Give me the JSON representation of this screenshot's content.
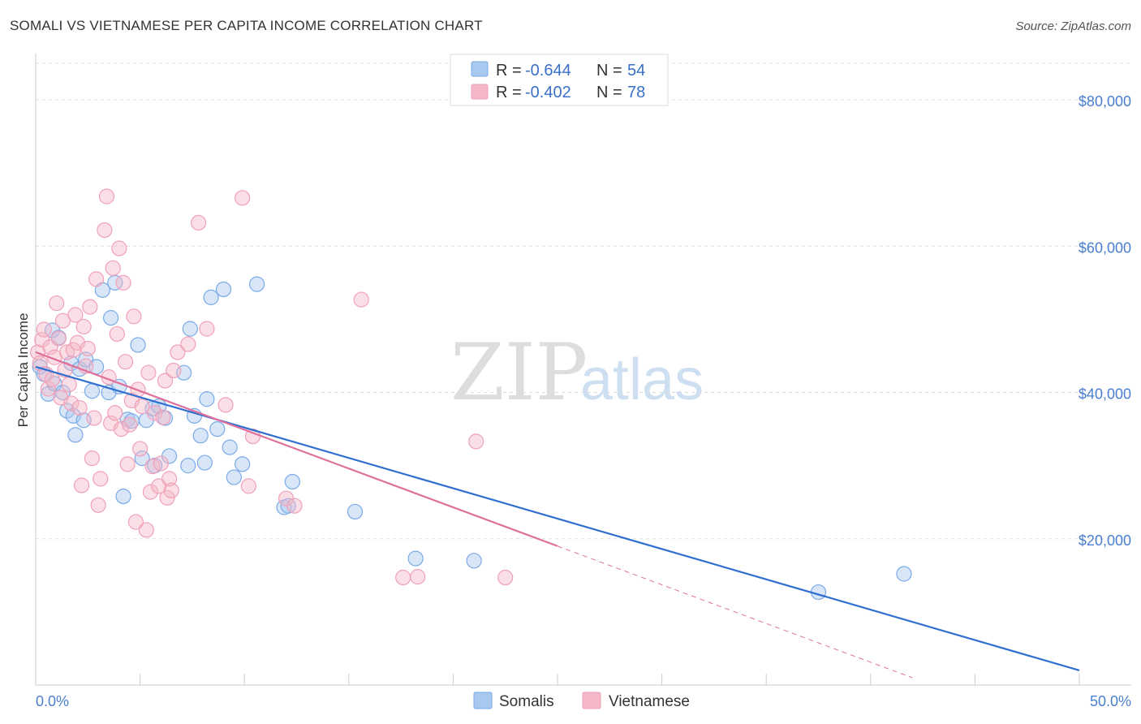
{
  "title": "SOMALI VS VIETNAMESE PER CAPITA INCOME CORRELATION CHART",
  "source": "Source: ZipAtlas.com",
  "watermark": {
    "zip": "ZIP",
    "atlas": "atlas"
  },
  "legend_top": [
    {
      "r_label": "R =",
      "r_value": "-0.644",
      "n_label": "N =",
      "n_value": "54",
      "color": "#a8c8f0"
    },
    {
      "r_label": "R =",
      "r_value": "-0.402",
      "n_label": "N =",
      "n_value": "78",
      "color": "#f5b8c8"
    }
  ],
  "chart_data": {
    "type": "scatter",
    "title": "SOMALI VS VIETNAMESE PER CAPITA INCOME CORRELATION CHART",
    "xlabel": "",
    "ylabel": "Per Capita Income",
    "xlim": [
      0,
      50
    ],
    "ylim": [
      0,
      85000
    ],
    "x_tick_labels": [
      "0.0%",
      "50.0%"
    ],
    "y_ticks": [
      20000,
      40000,
      60000,
      80000
    ],
    "y_tick_labels": [
      "$20,000",
      "$40,000",
      "$60,000",
      "$80,000"
    ],
    "grid": true,
    "legend_position": "top-center",
    "series": [
      {
        "name": "Somalis",
        "color": "#7aaae8",
        "trend": {
          "x": [
            0,
            50
          ],
          "y": [
            43500,
            2000
          ],
          "color": "#2f6fd0"
        },
        "points": [
          [
            0.2,
            43500
          ],
          [
            0.4,
            42500
          ],
          [
            0.6,
            39800
          ],
          [
            0.8,
            48500
          ],
          [
            0.9,
            41200
          ],
          [
            1.1,
            47500
          ],
          [
            1.3,
            40000
          ],
          [
            1.5,
            37500
          ],
          [
            1.7,
            44000
          ],
          [
            1.8,
            36800
          ],
          [
            1.9,
            34200
          ],
          [
            2.1,
            43200
          ],
          [
            2.3,
            36200
          ],
          [
            2.4,
            44500
          ],
          [
            2.7,
            40200
          ],
          [
            2.9,
            43500
          ],
          [
            3.2,
            54000
          ],
          [
            3.5,
            40000
          ],
          [
            3.6,
            50200
          ],
          [
            3.8,
            55000
          ],
          [
            4.0,
            40800
          ],
          [
            4.2,
            25800
          ],
          [
            4.4,
            36300
          ],
          [
            4.6,
            36100
          ],
          [
            4.9,
            46500
          ],
          [
            5.1,
            31000
          ],
          [
            5.3,
            36200
          ],
          [
            5.6,
            37800
          ],
          [
            5.7,
            30000
          ],
          [
            5.9,
            38100
          ],
          [
            6.2,
            36500
          ],
          [
            6.4,
            31300
          ],
          [
            7.1,
            42700
          ],
          [
            7.3,
            30000
          ],
          [
            7.4,
            48700
          ],
          [
            7.6,
            36800
          ],
          [
            7.9,
            34100
          ],
          [
            8.1,
            30400
          ],
          [
            8.2,
            39100
          ],
          [
            8.4,
            53000
          ],
          [
            8.7,
            35000
          ],
          [
            9.0,
            54100
          ],
          [
            9.3,
            32500
          ],
          [
            9.5,
            28400
          ],
          [
            9.9,
            30200
          ],
          [
            10.6,
            54800
          ],
          [
            11.9,
            24300
          ],
          [
            12.1,
            24500
          ],
          [
            12.3,
            27800
          ],
          [
            15.3,
            23700
          ],
          [
            18.2,
            17300
          ],
          [
            21.0,
            17000
          ],
          [
            37.5,
            12700
          ],
          [
            41.6,
            15200
          ]
        ]
      },
      {
        "name": "Vietnamese",
        "color": "#f0a0b8",
        "trend": {
          "x": [
            0,
            25
          ],
          "y": [
            45500,
            19000
          ],
          "color": "#e0709a"
        },
        "trend_extension": {
          "x": [
            25,
            42
          ],
          "y": [
            19000,
            1000
          ]
        },
        "points": [
          [
            0.1,
            45500
          ],
          [
            0.2,
            44000
          ],
          [
            0.3,
            47200
          ],
          [
            0.4,
            48600
          ],
          [
            0.5,
            42500
          ],
          [
            0.6,
            40500
          ],
          [
            0.7,
            46200
          ],
          [
            0.8,
            41800
          ],
          [
            0.9,
            44800
          ],
          [
            1.0,
            52200
          ],
          [
            1.1,
            47400
          ],
          [
            1.2,
            39300
          ],
          [
            1.3,
            49800
          ],
          [
            1.4,
            43100
          ],
          [
            1.5,
            45500
          ],
          [
            1.6,
            41100
          ],
          [
            1.7,
            38500
          ],
          [
            1.8,
            45800
          ],
          [
            1.9,
            50600
          ],
          [
            2.0,
            46800
          ],
          [
            2.1,
            37900
          ],
          [
            2.2,
            27300
          ],
          [
            2.3,
            49000
          ],
          [
            2.4,
            43600
          ],
          [
            2.5,
            46000
          ],
          [
            2.6,
            51700
          ],
          [
            2.7,
            31000
          ],
          [
            2.8,
            36500
          ],
          [
            2.9,
            55500
          ],
          [
            3.0,
            24600
          ],
          [
            3.1,
            28200
          ],
          [
            3.3,
            62200
          ],
          [
            3.4,
            66800
          ],
          [
            3.5,
            42100
          ],
          [
            3.6,
            35800
          ],
          [
            3.7,
            57000
          ],
          [
            3.8,
            37200
          ],
          [
            3.9,
            48000
          ],
          [
            4.0,
            59700
          ],
          [
            4.1,
            35000
          ],
          [
            4.2,
            55000
          ],
          [
            4.3,
            44200
          ],
          [
            4.4,
            30200
          ],
          [
            4.5,
            35600
          ],
          [
            4.6,
            38900
          ],
          [
            4.7,
            50400
          ],
          [
            4.8,
            22300
          ],
          [
            4.9,
            40400
          ],
          [
            5.0,
            32300
          ],
          [
            5.1,
            38100
          ],
          [
            5.3,
            21200
          ],
          [
            5.4,
            42700
          ],
          [
            5.5,
            26400
          ],
          [
            5.6,
            29900
          ],
          [
            5.7,
            37200
          ],
          [
            5.9,
            27200
          ],
          [
            6.0,
            30300
          ],
          [
            6.1,
            36600
          ],
          [
            6.2,
            41600
          ],
          [
            6.3,
            25600
          ],
          [
            6.4,
            28200
          ],
          [
            6.5,
            26600
          ],
          [
            6.6,
            43000
          ],
          [
            6.8,
            45500
          ],
          [
            7.3,
            46600
          ],
          [
            7.8,
            63200
          ],
          [
            8.2,
            48700
          ],
          [
            9.1,
            38300
          ],
          [
            9.9,
            66600
          ],
          [
            10.2,
            27200
          ],
          [
            10.4,
            34000
          ],
          [
            12.0,
            25500
          ],
          [
            12.4,
            24500
          ],
          [
            15.6,
            52700
          ],
          [
            17.6,
            14700
          ],
          [
            18.3,
            14800
          ],
          [
            21.1,
            33300
          ],
          [
            22.5,
            14700
          ]
        ]
      }
    ]
  },
  "bottom_legend": [
    {
      "label": "Somalis",
      "color": "#a8c8f0"
    },
    {
      "label": "Vietnamese",
      "color": "#f5b8c8"
    }
  ]
}
